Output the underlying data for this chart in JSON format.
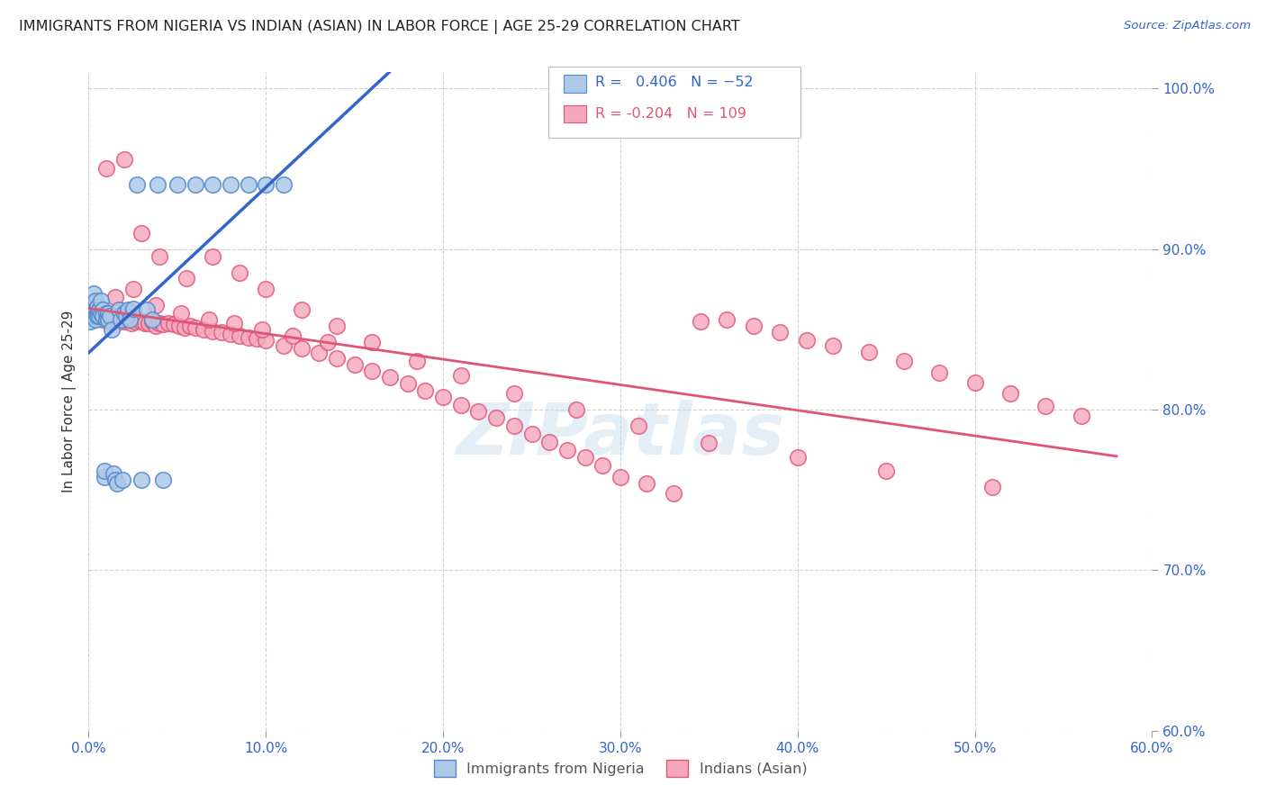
{
  "title": "IMMIGRANTS FROM NIGERIA VS INDIAN (ASIAN) IN LABOR FORCE | AGE 25-29 CORRELATION CHART",
  "source": "Source: ZipAtlas.com",
  "ylabel": "In Labor Force | Age 25-29",
  "xlim": [
    0.0,
    0.6
  ],
  "ylim": [
    0.6,
    1.01
  ],
  "xticks": [
    0.0,
    0.1,
    0.2,
    0.3,
    0.4,
    0.5,
    0.6
  ],
  "yticks": [
    0.6,
    0.7,
    0.8,
    0.9,
    1.0
  ],
  "ytick_labels": [
    "60.0%",
    "70.0%",
    "80.0%",
    "90.0%",
    "100.0%"
  ],
  "xtick_labels": [
    "0.0%",
    "10.0%",
    "20.0%",
    "30.0%",
    "40.0%",
    "50.0%",
    "60.0%"
  ],
  "nigeria_color": "#adc9e8",
  "india_color": "#f5a8bc",
  "nigeria_edge_color": "#5588cc",
  "india_edge_color": "#e05575",
  "trend_nigeria_color": "#3366cc",
  "trend_india_color": "#e05575",
  "R_nigeria": 0.406,
  "N_nigeria": 52,
  "R_india": -0.204,
  "N_india": 109,
  "legend_labels": [
    "Immigrants from Nigeria",
    "Indians (Asian)"
  ],
  "watermark": "ZIPatlas",
  "nigeria_x": [
    0.001,
    0.001,
    0.002,
    0.002,
    0.002,
    0.003,
    0.003,
    0.003,
    0.004,
    0.004,
    0.004,
    0.005,
    0.005,
    0.005,
    0.006,
    0.006,
    0.007,
    0.007,
    0.008,
    0.008,
    0.009,
    0.009,
    0.01,
    0.01,
    0.011,
    0.011,
    0.012,
    0.013,
    0.014,
    0.015,
    0.016,
    0.017,
    0.018,
    0.019,
    0.02,
    0.021,
    0.022,
    0.023,
    0.025,
    0.027,
    0.03,
    0.033,
    0.036,
    0.039,
    0.042,
    0.05,
    0.06,
    0.07,
    0.08,
    0.09,
    0.1,
    0.11
  ],
  "nigeria_y": [
    0.86,
    0.855,
    0.862,
    0.858,
    0.866,
    0.86,
    0.858,
    0.872,
    0.856,
    0.862,
    0.868,
    0.86,
    0.858,
    0.864,
    0.858,
    0.862,
    0.86,
    0.868,
    0.862,
    0.858,
    0.758,
    0.762,
    0.86,
    0.856,
    0.86,
    0.856,
    0.858,
    0.85,
    0.76,
    0.756,
    0.754,
    0.862,
    0.856,
    0.756,
    0.86,
    0.858,
    0.862,
    0.856,
    0.863,
    0.94,
    0.756,
    0.862,
    0.856,
    0.94,
    0.756,
    0.94,
    0.94,
    0.94,
    0.94,
    0.94,
    0.94,
    0.94
  ],
  "india_x": [
    0.002,
    0.003,
    0.004,
    0.005,
    0.006,
    0.007,
    0.008,
    0.009,
    0.01,
    0.011,
    0.012,
    0.013,
    0.014,
    0.015,
    0.016,
    0.017,
    0.018,
    0.019,
    0.02,
    0.021,
    0.022,
    0.024,
    0.026,
    0.028,
    0.03,
    0.032,
    0.034,
    0.036,
    0.038,
    0.04,
    0.042,
    0.045,
    0.048,
    0.051,
    0.054,
    0.057,
    0.06,
    0.065,
    0.07,
    0.075,
    0.08,
    0.085,
    0.09,
    0.095,
    0.1,
    0.11,
    0.12,
    0.13,
    0.14,
    0.15,
    0.16,
    0.17,
    0.18,
    0.19,
    0.2,
    0.21,
    0.22,
    0.23,
    0.24,
    0.25,
    0.26,
    0.27,
    0.28,
    0.29,
    0.3,
    0.315,
    0.33,
    0.345,
    0.36,
    0.375,
    0.39,
    0.405,
    0.42,
    0.44,
    0.46,
    0.48,
    0.5,
    0.52,
    0.54,
    0.56,
    0.01,
    0.02,
    0.03,
    0.04,
    0.055,
    0.07,
    0.085,
    0.1,
    0.12,
    0.14,
    0.16,
    0.185,
    0.21,
    0.24,
    0.275,
    0.31,
    0.35,
    0.4,
    0.45,
    0.51,
    0.015,
    0.025,
    0.038,
    0.052,
    0.068,
    0.082,
    0.098,
    0.115,
    0.135
  ],
  "india_y": [
    0.862,
    0.86,
    0.858,
    0.858,
    0.862,
    0.858,
    0.856,
    0.86,
    0.858,
    0.857,
    0.855,
    0.856,
    0.855,
    0.858,
    0.857,
    0.856,
    0.855,
    0.86,
    0.857,
    0.855,
    0.856,
    0.854,
    0.855,
    0.856,
    0.855,
    0.854,
    0.854,
    0.855,
    0.852,
    0.854,
    0.853,
    0.854,
    0.853,
    0.852,
    0.851,
    0.852,
    0.851,
    0.85,
    0.849,
    0.848,
    0.847,
    0.846,
    0.845,
    0.844,
    0.843,
    0.84,
    0.838,
    0.835,
    0.832,
    0.828,
    0.824,
    0.82,
    0.816,
    0.812,
    0.808,
    0.803,
    0.799,
    0.795,
    0.79,
    0.785,
    0.78,
    0.775,
    0.77,
    0.765,
    0.758,
    0.754,
    0.748,
    0.855,
    0.856,
    0.852,
    0.848,
    0.843,
    0.84,
    0.836,
    0.83,
    0.823,
    0.817,
    0.81,
    0.802,
    0.796,
    0.95,
    0.956,
    0.91,
    0.895,
    0.882,
    0.895,
    0.885,
    0.875,
    0.862,
    0.852,
    0.842,
    0.83,
    0.821,
    0.81,
    0.8,
    0.79,
    0.779,
    0.77,
    0.762,
    0.752,
    0.87,
    0.875,
    0.865,
    0.86,
    0.856,
    0.854,
    0.85,
    0.846,
    0.842
  ]
}
